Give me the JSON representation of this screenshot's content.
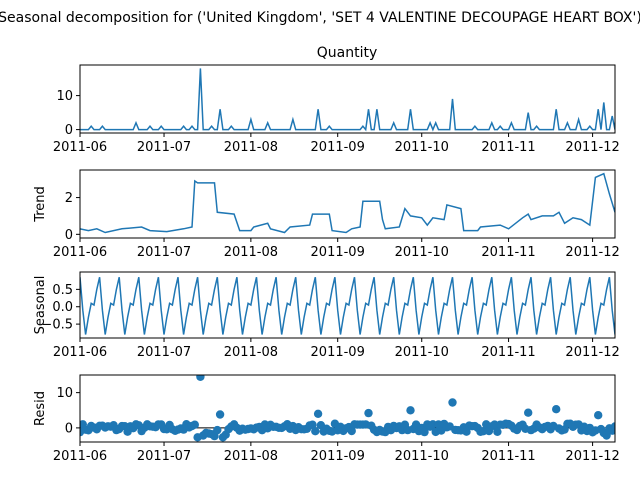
{
  "figure": {
    "suptitle": "Seasonal decomposition for ('United Kingdom', 'SET 4 VALENTINE DECOUPAGE HEART BOX')"
  },
  "colors": {
    "line": "#1f77b4",
    "marker": "#1f77b4",
    "axis": "#000000",
    "zero_line": "#000000"
  },
  "chart_data": [
    {
      "type": "line",
      "title": "Quantity",
      "ylabel": "",
      "ylim": [
        -1,
        19
      ],
      "yticks": [
        0,
        10
      ],
      "xticks": [
        "2011-06",
        "2011-07",
        "2011-08",
        "2011-09",
        "2011-10",
        "2011-11",
        "2011-12"
      ],
      "x_start": "2011-06-01",
      "x_end": "2011-12-09",
      "spikes": [
        {
          "date": "2011-06-05",
          "value": 1
        },
        {
          "date": "2011-06-09",
          "value": 1
        },
        {
          "date": "2011-06-21",
          "value": 2
        },
        {
          "date": "2011-06-26",
          "value": 1
        },
        {
          "date": "2011-06-30",
          "value": 1
        },
        {
          "date": "2011-07-08",
          "value": 1
        },
        {
          "date": "2011-07-11",
          "value": 1
        },
        {
          "date": "2011-07-14",
          "value": 18
        },
        {
          "date": "2011-07-18",
          "value": 1
        },
        {
          "date": "2011-07-21",
          "value": 6
        },
        {
          "date": "2011-07-25",
          "value": 1
        },
        {
          "date": "2011-08-01",
          "value": 3
        },
        {
          "date": "2011-08-07",
          "value": 2
        },
        {
          "date": "2011-08-16",
          "value": 3
        },
        {
          "date": "2011-08-25",
          "value": 6
        },
        {
          "date": "2011-08-29",
          "value": 1
        },
        {
          "date": "2011-09-10",
          "value": 1
        },
        {
          "date": "2011-09-12",
          "value": 6
        },
        {
          "date": "2011-09-15",
          "value": 6
        },
        {
          "date": "2011-09-21",
          "value": 2
        },
        {
          "date": "2011-09-27",
          "value": 6
        },
        {
          "date": "2011-10-04",
          "value": 2
        },
        {
          "date": "2011-10-06",
          "value": 2
        },
        {
          "date": "2011-10-12",
          "value": 9
        },
        {
          "date": "2011-10-20",
          "value": 1
        },
        {
          "date": "2011-10-26",
          "value": 2
        },
        {
          "date": "2011-10-29",
          "value": 1
        },
        {
          "date": "2011-11-02",
          "value": 2
        },
        {
          "date": "2011-11-08",
          "value": 5
        },
        {
          "date": "2011-11-11",
          "value": 1
        },
        {
          "date": "2011-11-18",
          "value": 6
        },
        {
          "date": "2011-11-22",
          "value": 2
        },
        {
          "date": "2011-11-26",
          "value": 3
        },
        {
          "date": "2011-11-30",
          "value": 1
        },
        {
          "date": "2011-12-03",
          "value": 6
        },
        {
          "date": "2011-12-05",
          "value": 8
        },
        {
          "date": "2011-12-08",
          "value": 4
        }
      ]
    },
    {
      "type": "line",
      "title": "",
      "ylabel": "Trend",
      "ylim": [
        -0.2,
        3.5
      ],
      "yticks": [
        0,
        2
      ],
      "xticks": [
        "2011-06",
        "2011-07",
        "2011-08",
        "2011-09",
        "2011-10",
        "2011-11",
        "2011-12"
      ],
      "points": [
        {
          "date": "2011-06-01",
          "value": 0.3
        },
        {
          "date": "2011-06-04",
          "value": 0.2
        },
        {
          "date": "2011-06-07",
          "value": 0.3
        },
        {
          "date": "2011-06-10",
          "value": 0.1
        },
        {
          "date": "2011-06-16",
          "value": 0.3
        },
        {
          "date": "2011-06-23",
          "value": 0.4
        },
        {
          "date": "2011-06-26",
          "value": 0.2
        },
        {
          "date": "2011-07-02",
          "value": 0.15
        },
        {
          "date": "2011-07-08",
          "value": 0.3
        },
        {
          "date": "2011-07-11",
          "value": 0.4
        },
        {
          "date": "2011-07-12",
          "value": 2.9
        },
        {
          "date": "2011-07-13",
          "value": 2.8
        },
        {
          "date": "2011-07-19",
          "value": 2.8
        },
        {
          "date": "2011-07-20",
          "value": 1.2
        },
        {
          "date": "2011-07-26",
          "value": 1.1
        },
        {
          "date": "2011-07-28",
          "value": 0.2
        },
        {
          "date": "2011-08-01",
          "value": 0.2
        },
        {
          "date": "2011-08-02",
          "value": 0.4
        },
        {
          "date": "2011-08-07",
          "value": 0.6
        },
        {
          "date": "2011-08-08",
          "value": 0.3
        },
        {
          "date": "2011-08-13",
          "value": 0.1
        },
        {
          "date": "2011-08-15",
          "value": 0.4
        },
        {
          "date": "2011-08-22",
          "value": 0.5
        },
        {
          "date": "2011-08-23",
          "value": 1.1
        },
        {
          "date": "2011-08-29",
          "value": 1.1
        },
        {
          "date": "2011-08-30",
          "value": 0.2
        },
        {
          "date": "2011-09-04",
          "value": 0.1
        },
        {
          "date": "2011-09-06",
          "value": 0.3
        },
        {
          "date": "2011-09-09",
          "value": 0.4
        },
        {
          "date": "2011-09-10",
          "value": 1.8
        },
        {
          "date": "2011-09-16",
          "value": 1.8
        },
        {
          "date": "2011-09-17",
          "value": 0.8
        },
        {
          "date": "2011-09-18",
          "value": 0.3
        },
        {
          "date": "2011-09-23",
          "value": 0.4
        },
        {
          "date": "2011-09-25",
          "value": 1.4
        },
        {
          "date": "2011-09-27",
          "value": 1.0
        },
        {
          "date": "2011-10-01",
          "value": 0.9
        },
        {
          "date": "2011-10-03",
          "value": 0.5
        },
        {
          "date": "2011-10-05",
          "value": 0.9
        },
        {
          "date": "2011-10-09",
          "value": 0.8
        },
        {
          "date": "2011-10-10",
          "value": 1.6
        },
        {
          "date": "2011-10-15",
          "value": 1.4
        },
        {
          "date": "2011-10-16",
          "value": 0.2
        },
        {
          "date": "2011-10-21",
          "value": 0.2
        },
        {
          "date": "2011-10-22",
          "value": 0.4
        },
        {
          "date": "2011-10-29",
          "value": 0.5
        },
        {
          "date": "2011-11-01",
          "value": 0.3
        },
        {
          "date": "2011-11-06",
          "value": 0.9
        },
        {
          "date": "2011-11-08",
          "value": 1.1
        },
        {
          "date": "2011-11-09",
          "value": 0.8
        },
        {
          "date": "2011-11-13",
          "value": 1.0
        },
        {
          "date": "2011-11-17",
          "value": 1.0
        },
        {
          "date": "2011-11-19",
          "value": 1.2
        },
        {
          "date": "2011-11-21",
          "value": 0.6
        },
        {
          "date": "2011-11-24",
          "value": 0.9
        },
        {
          "date": "2011-11-27",
          "value": 0.8
        },
        {
          "date": "2011-11-30",
          "value": 0.5
        },
        {
          "date": "2011-12-02",
          "value": 3.1
        },
        {
          "date": "2011-12-05",
          "value": 3.3
        },
        {
          "date": "2011-12-07",
          "value": 2.2
        },
        {
          "date": "2011-12-09",
          "value": 1.2
        }
      ]
    },
    {
      "type": "line",
      "title": "",
      "ylabel": "Seasonal",
      "ylim": [
        -0.9,
        1.0
      ],
      "yticks": [
        0.5,
        0.0,
        -0.5
      ],
      "ytick_labels": [
        "0.5",
        "0.0",
        "−0.5"
      ],
      "xticks": [
        "2011-06",
        "2011-07",
        "2011-08",
        "2011-09",
        "2011-10",
        "2011-11",
        "2011-12"
      ],
      "period_days": 7,
      "pattern": [
        0.85,
        -0.1,
        -0.8,
        -0.3,
        0.1,
        0.05,
        0.5
      ]
    },
    {
      "type": "scatter",
      "title": "",
      "ylabel": "Resid",
      "ylim": [
        -4,
        15
      ],
      "yticks": [
        0,
        10
      ],
      "xticks": [
        "2011-06",
        "2011-07",
        "2011-08",
        "2011-09",
        "2011-10",
        "2011-11",
        "2011-12"
      ],
      "zero_line": true,
      "notable_points": [
        {
          "date": "2011-07-14",
          "value": 14.5
        },
        {
          "date": "2011-07-21",
          "value": 3.8
        },
        {
          "date": "2011-08-25",
          "value": 4.0
        },
        {
          "date": "2011-09-12",
          "value": 4.2
        },
        {
          "date": "2011-09-27",
          "value": 5.0
        },
        {
          "date": "2011-10-12",
          "value": 7.2
        },
        {
          "date": "2011-11-08",
          "value": 4.3
        },
        {
          "date": "2011-11-18",
          "value": 5.3
        },
        {
          "date": "2011-12-03",
          "value": 3.6
        }
      ]
    }
  ]
}
